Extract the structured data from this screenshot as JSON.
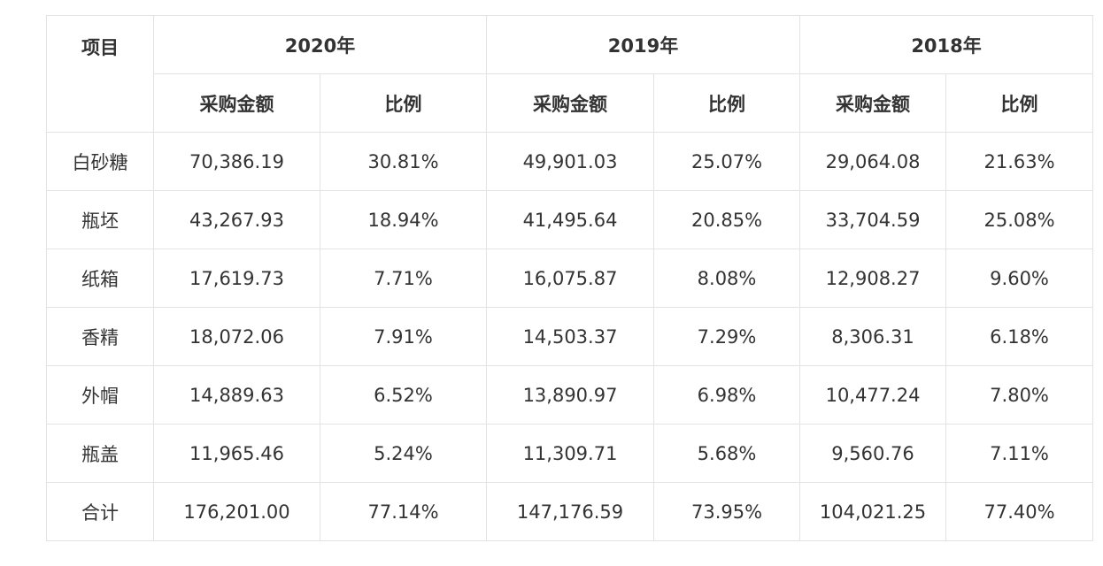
{
  "table": {
    "item_header": "项目",
    "years": [
      "2020年",
      "2019年",
      "2018年"
    ],
    "sub_headers": [
      "采购金额",
      "比例",
      "采购金额",
      "比例",
      "采购金额",
      "比例"
    ],
    "rows": [
      {
        "item": "白砂糖",
        "cells": [
          "70,386.19",
          "30.81%",
          "49,901.03",
          "25.07%",
          "29,064.08",
          "21.63%"
        ]
      },
      {
        "item": "瓶坯",
        "cells": [
          "43,267.93",
          "18.94%",
          "41,495.64",
          "20.85%",
          "33,704.59",
          "25.08%"
        ]
      },
      {
        "item": "纸箱",
        "cells": [
          "17,619.73",
          "7.71%",
          "16,075.87",
          "8.08%",
          "12,908.27",
          "9.60%"
        ]
      },
      {
        "item": "香精",
        "cells": [
          "18,072.06",
          "7.91%",
          "14,503.37",
          "7.29%",
          "8,306.31",
          "6.18%"
        ]
      },
      {
        "item": "外帽",
        "cells": [
          "14,889.63",
          "6.52%",
          "13,890.97",
          "6.98%",
          "10,477.24",
          "7.80%"
        ]
      },
      {
        "item": "瓶盖",
        "cells": [
          "11,965.46",
          "5.24%",
          "11,309.71",
          "5.68%",
          "9,560.76",
          "7.11%"
        ]
      },
      {
        "item": "合计",
        "cells": [
          "176,201.00",
          "77.14%",
          "147,176.59",
          "73.95%",
          "104,021.25",
          "77.40%"
        ]
      }
    ]
  }
}
